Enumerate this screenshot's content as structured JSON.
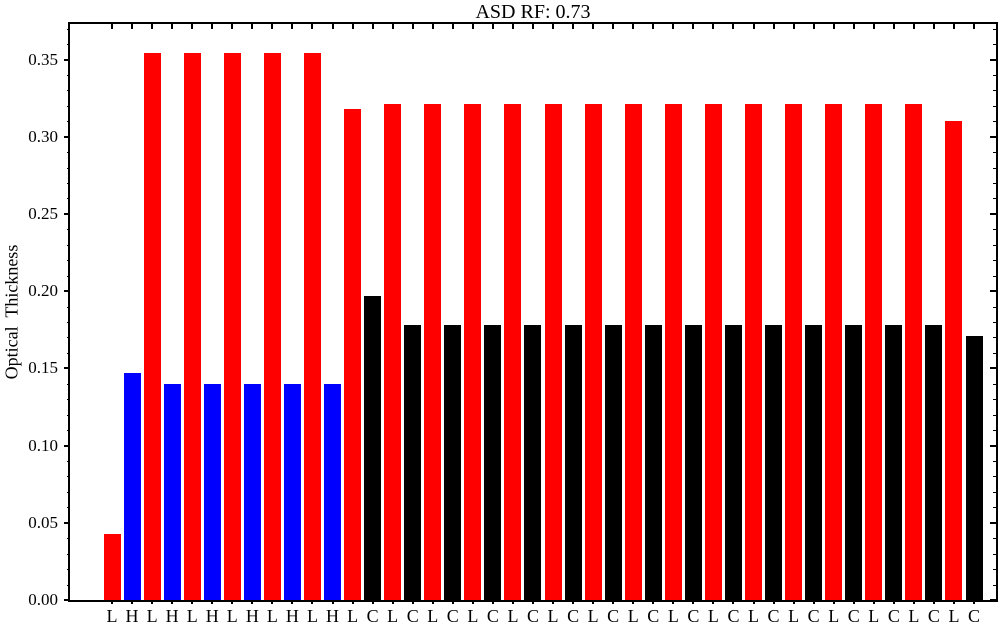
{
  "title": "ASD RF: 0.73",
  "y_axis": {
    "label": "Optical  Thickness",
    "tick_labels": [
      "0.00",
      "0.05",
      "0.10",
      "0.15",
      "0.20",
      "0.25",
      "0.30",
      "0.35"
    ]
  },
  "chart_data": {
    "type": "bar",
    "title": "ASD RF: 0.73",
    "xlabel": "",
    "ylabel": "Optical Thickness",
    "ylim": [
      0,
      0.373
    ],
    "ytick_step": 0.05,
    "minor_tick_step": 0.01,
    "grid": false,
    "legend": false,
    "frame": "full box, ticks mirrored on top and right",
    "categories": [
      "L",
      "H",
      "L",
      "H",
      "L",
      "H",
      "L",
      "H",
      "L",
      "H",
      "L",
      "H",
      "L",
      "C",
      "L",
      "C",
      "L",
      "C",
      "L",
      "C",
      "L",
      "C",
      "L",
      "C",
      "L",
      "C",
      "L",
      "C",
      "L",
      "C",
      "L",
      "C",
      "L",
      "C",
      "L",
      "C",
      "L",
      "C",
      "L",
      "C",
      "L",
      "C",
      "L",
      "C"
    ],
    "values": [
      0.043,
      0.147,
      0.354,
      0.14,
      0.354,
      0.14,
      0.354,
      0.14,
      0.354,
      0.14,
      0.354,
      0.14,
      0.318,
      0.197,
      0.321,
      0.178,
      0.321,
      0.178,
      0.321,
      0.178,
      0.321,
      0.178,
      0.321,
      0.178,
      0.321,
      0.178,
      0.321,
      0.178,
      0.321,
      0.178,
      0.321,
      0.178,
      0.321,
      0.178,
      0.321,
      0.178,
      0.321,
      0.178,
      0.321,
      0.178,
      0.321,
      0.178,
      0.31,
      0.171
    ],
    "color_map": {
      "L": "#ff0000",
      "H": "#0000ff",
      "C": "#000000"
    },
    "axis_color": "#000000"
  }
}
